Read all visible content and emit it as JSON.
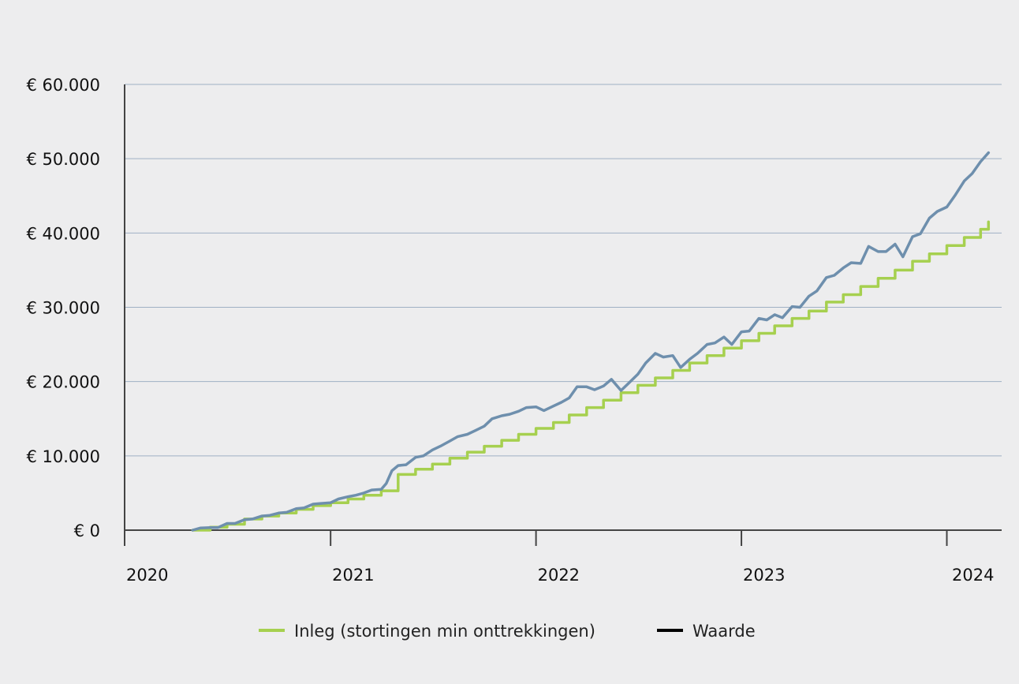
{
  "colors": {
    "background": "#ededee",
    "grid": "#9fb1c4",
    "axis": "#444444",
    "inleg": "#a6d04f",
    "waarde": "#6e8fad",
    "waarde_legend": "#000000"
  },
  "legend": {
    "inleg_label": "Inleg (stortingen min onttrekkingen)",
    "waarde_label": "Waarde"
  },
  "chart_data": {
    "type": "line",
    "title": "",
    "xlabel": "",
    "ylabel": "",
    "x_range": [
      "2020-01-01",
      "2024-03-15"
    ],
    "ylim": [
      0,
      60000
    ],
    "grid": true,
    "legend_position": "bottom",
    "y_ticks": [
      0,
      10000,
      20000,
      30000,
      40000,
      50000,
      60000
    ],
    "y_tick_labels": [
      "€ 0",
      "€ 10.000",
      "€ 20.000",
      "€ 30.000",
      "€ 40.000",
      "€ 50.000",
      "€ 60.000"
    ],
    "x_ticks": [
      "2020-01-01",
      "2021-01-01",
      "2022-01-01",
      "2023-01-01",
      "2024-01-01"
    ],
    "x_tick_labels": [
      "2020",
      "2021",
      "2022",
      "2023",
      "2024"
    ],
    "series": [
      {
        "name": "Inleg (stortingen min onttrekkingen)",
        "color": "#a6d04f",
        "step": true,
        "x": [
          "2020-05-01",
          "2020-06-01",
          "2020-07-01",
          "2020-08-01",
          "2020-09-01",
          "2020-10-01",
          "2020-11-01",
          "2020-12-01",
          "2021-01-01",
          "2021-02-01",
          "2021-03-01",
          "2021-04-01",
          "2021-05-01",
          "2021-06-01",
          "2021-07-01",
          "2021-08-01",
          "2021-09-01",
          "2021-10-01",
          "2021-11-01",
          "2021-12-01",
          "2022-01-01",
          "2022-02-01",
          "2022-03-01",
          "2022-04-01",
          "2022-05-01",
          "2022-06-01",
          "2022-07-01",
          "2022-08-01",
          "2022-09-01",
          "2022-10-01",
          "2022-11-01",
          "2022-12-01",
          "2023-01-01",
          "2023-02-01",
          "2023-03-01",
          "2023-04-01",
          "2023-05-01",
          "2023-06-01",
          "2023-07-01",
          "2023-08-01",
          "2023-09-01",
          "2023-10-01",
          "2023-11-01",
          "2023-12-01",
          "2024-01-01",
          "2024-02-01",
          "2024-03-01",
          "2024-03-15"
        ],
        "values": [
          0,
          400,
          800,
          1500,
          1900,
          2300,
          2800,
          3300,
          3700,
          4200,
          4700,
          5300,
          7500,
          8200,
          8900,
          9700,
          10500,
          11300,
          12100,
          12900,
          13700,
          14500,
          15500,
          16500,
          17500,
          18500,
          19500,
          20500,
          21500,
          22500,
          23500,
          24500,
          25500,
          26500,
          27500,
          28500,
          29500,
          30700,
          31700,
          32800,
          33900,
          35000,
          36200,
          37200,
          38300,
          39400,
          40500,
          41500
        ]
      },
      {
        "name": "Waarde",
        "color": "#6e8fad",
        "x": [
          "2020-05-01",
          "2020-05-15",
          "2020-06-01",
          "2020-06-15",
          "2020-07-01",
          "2020-07-15",
          "2020-08-01",
          "2020-08-15",
          "2020-09-01",
          "2020-09-15",
          "2020-10-01",
          "2020-10-15",
          "2020-11-01",
          "2020-11-15",
          "2020-12-01",
          "2020-12-15",
          "2021-01-01",
          "2021-01-15",
          "2021-02-01",
          "2021-02-15",
          "2021-03-01",
          "2021-03-15",
          "2021-04-01",
          "2021-04-10",
          "2021-04-20",
          "2021-05-01",
          "2021-05-15",
          "2021-06-01",
          "2021-06-15",
          "2021-07-01",
          "2021-07-15",
          "2021-08-01",
          "2021-08-15",
          "2021-09-01",
          "2021-09-15",
          "2021-10-01",
          "2021-10-15",
          "2021-11-01",
          "2021-11-15",
          "2021-12-01",
          "2021-12-15",
          "2022-01-01",
          "2022-01-15",
          "2022-02-01",
          "2022-02-15",
          "2022-03-01",
          "2022-03-15",
          "2022-04-01",
          "2022-04-15",
          "2022-05-01",
          "2022-05-15",
          "2022-06-01",
          "2022-06-15",
          "2022-07-01",
          "2022-07-15",
          "2022-08-01",
          "2022-08-15",
          "2022-09-01",
          "2022-09-15",
          "2022-10-01",
          "2022-10-15",
          "2022-11-01",
          "2022-11-15",
          "2022-12-01",
          "2022-12-15",
          "2023-01-01",
          "2023-01-15",
          "2023-02-01",
          "2023-02-15",
          "2023-03-01",
          "2023-03-15",
          "2023-04-01",
          "2023-04-15",
          "2023-05-01",
          "2023-05-15",
          "2023-06-01",
          "2023-06-15",
          "2023-07-01",
          "2023-07-15",
          "2023-08-01",
          "2023-08-15",
          "2023-09-01",
          "2023-09-15",
          "2023-10-01",
          "2023-10-15",
          "2023-11-01",
          "2023-11-15",
          "2023-12-01",
          "2023-12-15",
          "2024-01-01",
          "2024-01-15",
          "2024-02-01",
          "2024-02-15",
          "2024-03-01",
          "2024-03-15"
        ],
        "values": [
          0,
          300,
          350,
          350,
          900,
          900,
          1400,
          1500,
          1900,
          2000,
          2300,
          2400,
          2900,
          3000,
          3500,
          3600,
          3700,
          4200,
          4500,
          4700,
          5000,
          5400,
          5500,
          6300,
          8000,
          8700,
          8800,
          9800,
          10000,
          10800,
          11300,
          12000,
          12600,
          12900,
          13400,
          14000,
          15000,
          15400,
          15600,
          16000,
          16500,
          16600,
          16100,
          16700,
          17200,
          17800,
          19300,
          19300,
          18900,
          19400,
          20300,
          18800,
          19800,
          21000,
          22500,
          23800,
          23300,
          23500,
          21900,
          23000,
          23800,
          25000,
          25200,
          26000,
          25000,
          26700,
          26800,
          28500,
          28300,
          29000,
          28600,
          30100,
          30000,
          31500,
          32200,
          34000,
          34300,
          35300,
          36000,
          35900,
          38200,
          37500,
          37500,
          38500,
          36800,
          39500,
          39900,
          42000,
          42900,
          43500,
          45000,
          47000,
          48000,
          49600,
          50800
        ]
      }
    ]
  }
}
